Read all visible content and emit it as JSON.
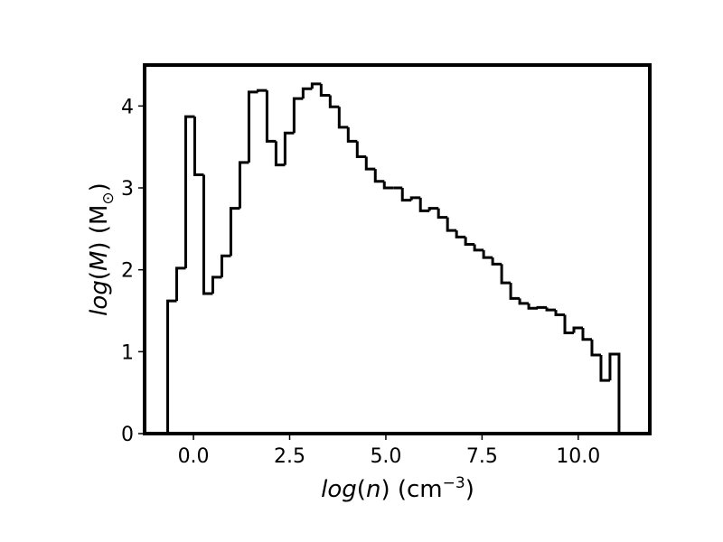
{
  "chart_data": {
    "type": "histogram",
    "xlabel_parts": {
      "func": "log",
      "var": "n",
      "unit": "cm",
      "exp": "−3"
    },
    "ylabel_parts": {
      "func": "log",
      "var": "M",
      "unit": "M",
      "sub": "⊙"
    },
    "xlim": [
      -1.27,
      11.86
    ],
    "ylim": [
      0,
      4.5
    ],
    "xticks": [
      {
        "value": 0.0,
        "label": "0.0"
      },
      {
        "value": 2.5,
        "label": "2.5"
      },
      {
        "value": 5.0,
        "label": "5.0"
      },
      {
        "value": 7.5,
        "label": "7.5"
      },
      {
        "value": 10.0,
        "label": "10.0"
      }
    ],
    "yticks": [
      {
        "value": 0,
        "label": "0"
      },
      {
        "value": 1,
        "label": "1"
      },
      {
        "value": 2,
        "label": "2"
      },
      {
        "value": 3,
        "label": "3"
      },
      {
        "value": 4,
        "label": "4"
      }
    ],
    "bin_start": -0.67,
    "bin_width": 0.2346,
    "values": [
      1.62,
      2.02,
      3.87,
      3.16,
      1.71,
      1.91,
      2.17,
      2.75,
      3.31,
      4.17,
      4.19,
      3.57,
      3.28,
      3.67,
      4.09,
      4.21,
      4.27,
      4.13,
      3.99,
      3.74,
      3.57,
      3.38,
      3.23,
      3.08,
      3.0,
      3.0,
      2.85,
      2.88,
      2.72,
      2.75,
      2.64,
      2.48,
      2.4,
      2.31,
      2.24,
      2.15,
      2.07,
      1.84,
      1.65,
      1.59,
      1.53,
      1.54,
      1.51,
      1.45,
      1.23,
      1.29,
      1.15,
      0.96,
      0.65,
      0.97
    ],
    "style": {
      "line_color": "#000000",
      "fill": "none",
      "grid": false
    }
  }
}
